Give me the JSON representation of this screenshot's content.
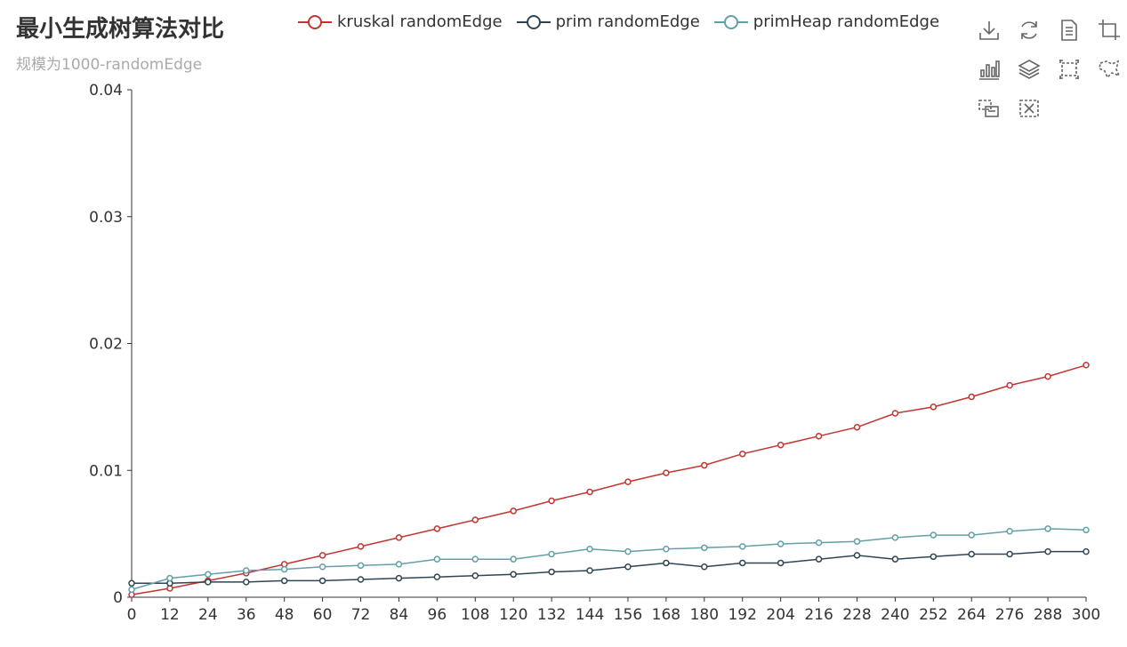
{
  "title": "最小生成树算法对比",
  "subtitle": "规模为1000-randomEdge",
  "toolbox": [
    "save-as-image-icon",
    "restore-icon",
    "data-view-icon",
    "zoom-crop-icon",
    "bar-chart-icon",
    "stack-icon",
    "brush-rect-icon",
    "brush-lasso-icon",
    "brush-keep-icon",
    "brush-clear-icon"
  ],
  "chart_data": {
    "type": "line",
    "title": "最小生成树算法对比",
    "subtitle": "规模为1000-randomEdge",
    "xlabel": "",
    "ylabel": "",
    "xlim": [
      0,
      300
    ],
    "ylim": [
      0,
      0.04
    ],
    "x_ticks": [
      "0",
      "12",
      "24",
      "36",
      "48",
      "60",
      "72",
      "84",
      "96",
      "108",
      "120",
      "132",
      "144",
      "156",
      "168",
      "180",
      "192",
      "204",
      "216",
      "228",
      "240",
      "252",
      "264",
      "276",
      "288",
      "300"
    ],
    "y_ticks": [
      "0",
      "0.01",
      "0.02",
      "0.03",
      "0.04"
    ],
    "grid": false,
    "legend_position": "top",
    "x": [
      0,
      12,
      24,
      36,
      48,
      60,
      72,
      84,
      96,
      108,
      120,
      132,
      144,
      156,
      168,
      180,
      192,
      204,
      216,
      228,
      240,
      252,
      264,
      276,
      288,
      300
    ],
    "series": [
      {
        "name": "kruskal randomEdge",
        "color": "#c23531",
        "values": [
          0.0002,
          0.0007,
          0.0013,
          0.0019,
          0.0026,
          0.0033,
          0.004,
          0.0047,
          0.0054,
          0.0061,
          0.0068,
          0.0076,
          0.0083,
          0.0091,
          0.0098,
          0.0104,
          0.0113,
          0.012,
          0.0127,
          0.0134,
          0.0145,
          0.015,
          0.0158,
          0.0167,
          0.0174,
          0.0183
        ]
      },
      {
        "name": "prim randomEdge",
        "color": "#2f4554",
        "values": [
          0.0011,
          0.0011,
          0.0012,
          0.0012,
          0.0013,
          0.0013,
          0.0014,
          0.0015,
          0.0016,
          0.0017,
          0.0018,
          0.002,
          0.0021,
          0.0024,
          0.0027,
          0.0024,
          0.0027,
          0.0027,
          0.003,
          0.0033,
          0.003,
          0.0032,
          0.0034,
          0.0034,
          0.0036,
          0.0036
        ]
      },
      {
        "name": "primHeap randomEdge",
        "color": "#61a0a8",
        "values": [
          0.0006,
          0.0015,
          0.0018,
          0.0021,
          0.0022,
          0.0024,
          0.0025,
          0.0026,
          0.003,
          0.003,
          0.003,
          0.0034,
          0.0038,
          0.0036,
          0.0038,
          0.0039,
          0.004,
          0.0042,
          0.0043,
          0.0044,
          0.0047,
          0.0049,
          0.0049,
          0.0052,
          0.0054,
          0.0053
        ]
      }
    ]
  }
}
